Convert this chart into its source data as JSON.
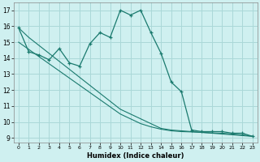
{
  "xlabel": "Humidex (Indice chaleur)",
  "bg_color": "#cff0f0",
  "grid_color": "#aad8d8",
  "line_color": "#1a7a6e",
  "xlim": [
    -0.5,
    23.5
  ],
  "ylim": [
    8.7,
    17.5
  ],
  "yticks": [
    9,
    10,
    11,
    12,
    13,
    14,
    15,
    16,
    17
  ],
  "xticks": [
    0,
    1,
    2,
    3,
    4,
    5,
    6,
    7,
    8,
    9,
    10,
    11,
    12,
    13,
    14,
    15,
    16,
    17,
    18,
    19,
    20,
    21,
    22,
    23
  ],
  "line1_x": [
    0,
    1,
    2,
    3,
    4,
    5,
    6,
    7,
    8,
    9,
    10,
    11,
    12,
    13,
    14,
    15,
    16,
    17,
    18,
    19,
    20,
    21,
    22,
    23
  ],
  "line1_y": [
    15.9,
    14.4,
    14.2,
    13.9,
    14.6,
    13.7,
    13.5,
    14.9,
    15.6,
    15.3,
    17.0,
    16.7,
    17.0,
    15.6,
    14.3,
    12.5,
    11.9,
    9.5,
    9.4,
    9.4,
    9.4,
    9.3,
    9.3,
    9.1
  ],
  "line2_x": [
    0,
    1,
    2,
    3,
    4,
    5,
    6,
    7,
    8,
    9,
    10,
    11,
    12,
    13,
    14,
    15,
    16,
    17,
    18,
    19,
    20,
    21,
    22,
    23
  ],
  "line2_y": [
    15.9,
    15.3,
    14.8,
    14.3,
    13.8,
    13.3,
    12.8,
    12.3,
    11.8,
    11.3,
    10.8,
    10.5,
    10.2,
    9.9,
    9.6,
    9.5,
    9.45,
    9.4,
    9.35,
    9.3,
    9.25,
    9.2,
    9.15,
    9.1
  ],
  "line3_x": [
    0,
    1,
    2,
    3,
    4,
    5,
    6,
    7,
    8,
    9,
    10,
    11,
    12,
    13,
    14,
    15,
    16,
    17,
    18,
    19,
    20,
    21,
    22,
    23
  ],
  "line3_y": [
    15.0,
    14.55,
    14.1,
    13.65,
    13.2,
    12.75,
    12.3,
    11.85,
    11.4,
    10.95,
    10.5,
    10.2,
    9.9,
    9.7,
    9.55,
    9.45,
    9.4,
    9.38,
    9.35,
    9.32,
    9.3,
    9.25,
    9.2,
    9.1
  ]
}
